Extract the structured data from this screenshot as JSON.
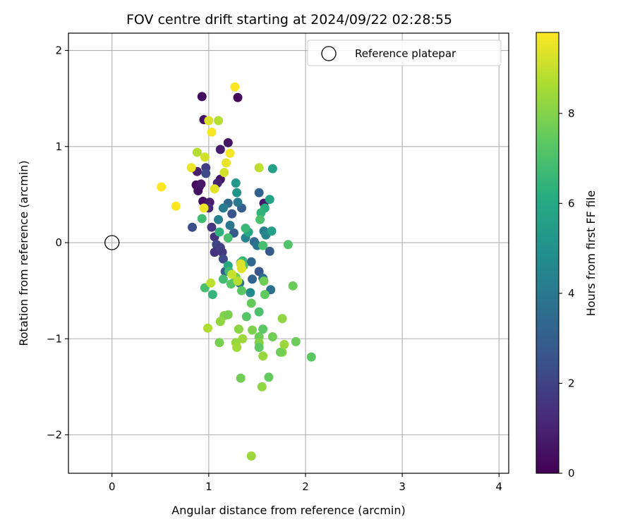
{
  "chart_data": {
    "type": "scatter",
    "title": "FOV centre drift starting at 2024/09/22 02:28:55",
    "xlabel": "Angular distance from reference (arcmin)",
    "ylabel": "Rotation from reference (arcmin)",
    "xlim": [
      -0.45,
      4.1
    ],
    "ylim": [
      -2.4,
      2.18
    ],
    "xticks": [
      0,
      1,
      2,
      3,
      4
    ],
    "xtick_labels": [
      "0",
      "1",
      "2",
      "3",
      "4"
    ],
    "yticks": [
      -2,
      -1,
      0,
      1,
      2
    ],
    "ytick_labels": [
      "−2",
      "−1",
      "0",
      "1",
      "2"
    ],
    "grid": true,
    "legend": {
      "placement": "top-right",
      "entries": [
        {
          "label": "Reference platepar",
          "marker": "open-circle"
        }
      ]
    },
    "colormap": "viridis",
    "colorbar": {
      "label": "Hours from first FF file",
      "range": [
        0,
        9.8
      ],
      "ticks": [
        0,
        2,
        4,
        6,
        8
      ],
      "tick_labels": [
        "0",
        "2",
        "4",
        "6",
        "8"
      ]
    },
    "reference_point": {
      "x": 0,
      "y": 0
    },
    "points": [
      {
        "x": 0.93,
        "y": 1.52,
        "c": 0.3
      },
      {
        "x": 1.3,
        "y": 1.51,
        "c": 0.2
      },
      {
        "x": 0.95,
        "y": 1.28,
        "c": 0.5
      },
      {
        "x": 1.2,
        "y": 1.04,
        "c": 0.6
      },
      {
        "x": 1.12,
        "y": 0.97,
        "c": 0.8
      },
      {
        "x": 0.88,
        "y": 0.74,
        "c": 0.9
      },
      {
        "x": 0.87,
        "y": 0.6,
        "c": 0.3
      },
      {
        "x": 0.9,
        "y": 0.58,
        "c": 0.4
      },
      {
        "x": 0.89,
        "y": 0.54,
        "c": 0.5
      },
      {
        "x": 0.92,
        "y": 0.61,
        "c": 0.6
      },
      {
        "x": 0.94,
        "y": 0.43,
        "c": 0.4
      },
      {
        "x": 1.12,
        "y": 0.66,
        "c": 0.5
      },
      {
        "x": 1.09,
        "y": 0.62,
        "c": 1.0
      },
      {
        "x": 1.57,
        "y": 0.41,
        "c": 0.7
      },
      {
        "x": 1.01,
        "y": 0.42,
        "c": 0.8
      },
      {
        "x": 1.0,
        "y": 0.36,
        "c": 1.2
      },
      {
        "x": 0.97,
        "y": 0.78,
        "c": 1.8
      },
      {
        "x": 0.97,
        "y": 0.72,
        "c": 2.2
      },
      {
        "x": 0.83,
        "y": 0.16,
        "c": 2.4
      },
      {
        "x": 1.03,
        "y": 0.16,
        "c": 1.6
      },
      {
        "x": 1.06,
        "y": 0.06,
        "c": 1.5
      },
      {
        "x": 1.08,
        "y": -0.02,
        "c": 2.1
      },
      {
        "x": 1.06,
        "y": -0.1,
        "c": 1.5
      },
      {
        "x": 1.12,
        "y": -0.05,
        "c": 1.9
      },
      {
        "x": 1.14,
        "y": -0.1,
        "c": 1.7
      },
      {
        "x": 1.15,
        "y": -0.17,
        "c": 2.3
      },
      {
        "x": 1.24,
        "y": 0.3,
        "c": 2.6
      },
      {
        "x": 1.26,
        "y": 0.1,
        "c": 2.8
      },
      {
        "x": 1.28,
        "y": -0.38,
        "c": 2.4
      },
      {
        "x": 1.17,
        "y": -0.3,
        "c": 3.0
      },
      {
        "x": 1.34,
        "y": 0.36,
        "c": 3.0
      },
      {
        "x": 1.44,
        "y": -0.2,
        "c": 3.3
      },
      {
        "x": 1.45,
        "y": -0.38,
        "c": 3.2
      },
      {
        "x": 1.52,
        "y": -0.3,
        "c": 2.7
      },
      {
        "x": 1.52,
        "y": 0.52,
        "c": 3.1
      },
      {
        "x": 1.47,
        "y": 0.01,
        "c": 3.5
      },
      {
        "x": 1.5,
        "y": -0.03,
        "c": 3.9
      },
      {
        "x": 1.56,
        "y": -0.37,
        "c": 3.6
      },
      {
        "x": 1.63,
        "y": -0.09,
        "c": 2.8
      },
      {
        "x": 1.64,
        "y": -0.49,
        "c": 3.7
      },
      {
        "x": 1.2,
        "y": 0.41,
        "c": 3.5
      },
      {
        "x": 1.15,
        "y": 0.36,
        "c": 4.1
      },
      {
        "x": 1.1,
        "y": 0.24,
        "c": 4.3
      },
      {
        "x": 1.22,
        "y": 0.18,
        "c": 3.9
      },
      {
        "x": 1.3,
        "y": 0.42,
        "c": 4.0
      },
      {
        "x": 1.32,
        "y": -0.42,
        "c": 3.9
      },
      {
        "x": 1.43,
        "y": -0.52,
        "c": 4.6
      },
      {
        "x": 1.38,
        "y": 0.05,
        "c": 4.4
      },
      {
        "x": 1.57,
        "y": 0.12,
        "c": 4.2
      },
      {
        "x": 1.59,
        "y": 0.08,
        "c": 4.5
      },
      {
        "x": 1.33,
        "y": -0.21,
        "c": 4.5
      },
      {
        "x": 1.28,
        "y": 0.62,
        "c": 5.2
      },
      {
        "x": 1.29,
        "y": 0.52,
        "c": 5.1
      },
      {
        "x": 1.66,
        "y": 0.77,
        "c": 5.7
      },
      {
        "x": 1.63,
        "y": 0.45,
        "c": 5.8
      },
      {
        "x": 1.58,
        "y": 0.36,
        "c": 6.2
      },
      {
        "x": 1.54,
        "y": 0.31,
        "c": 6.4
      },
      {
        "x": 1.65,
        "y": 0.12,
        "c": 5.6
      },
      {
        "x": 1.41,
        "y": 0.11,
        "c": 5.9
      },
      {
        "x": 1.38,
        "y": 0.15,
        "c": 6.6
      },
      {
        "x": 1.2,
        "y": 0.05,
        "c": 6.9
      },
      {
        "x": 1.11,
        "y": 0.11,
        "c": 6.3
      },
      {
        "x": 1.2,
        "y": -0.24,
        "c": 6.0
      },
      {
        "x": 1.21,
        "y": -0.3,
        "c": 6.7
      },
      {
        "x": 1.35,
        "y": -0.19,
        "c": 6.5
      },
      {
        "x": 1.36,
        "y": -0.24,
        "c": 7.0
      },
      {
        "x": 1.15,
        "y": -0.38,
        "c": 6.8
      },
      {
        "x": 0.96,
        "y": -0.47,
        "c": 6.9
      },
      {
        "x": 1.04,
        "y": -0.54,
        "c": 6.5
      },
      {
        "x": 1.56,
        "y": -0.03,
        "c": 6.9
      },
      {
        "x": 1.53,
        "y": 0.24,
        "c": 7.0
      },
      {
        "x": 0.93,
        "y": 0.25,
        "c": 6.8
      },
      {
        "x": 1.23,
        "y": -0.43,
        "c": 7.2
      },
      {
        "x": 1.28,
        "y": -0.36,
        "c": 7.6
      },
      {
        "x": 1.34,
        "y": -0.5,
        "c": 7.3
      },
      {
        "x": 1.44,
        "y": -0.63,
        "c": 7.5
      },
      {
        "x": 1.57,
        "y": -0.4,
        "c": 7.7
      },
      {
        "x": 1.58,
        "y": -0.54,
        "c": 7.4
      },
      {
        "x": 1.39,
        "y": -0.77,
        "c": 7.2
      },
      {
        "x": 1.52,
        "y": -0.72,
        "c": 7.0
      },
      {
        "x": 1.82,
        "y": -0.02,
        "c": 7.1
      },
      {
        "x": 1.87,
        "y": -0.45,
        "c": 7.6
      },
      {
        "x": 1.16,
        "y": -0.76,
        "c": 8.0
      },
      {
        "x": 1.2,
        "y": -0.75,
        "c": 7.8
      },
      {
        "x": 1.12,
        "y": -0.82,
        "c": 8.2
      },
      {
        "x": 0.99,
        "y": -0.89,
        "c": 8.7
      },
      {
        "x": 1.11,
        "y": -1.04,
        "c": 7.8
      },
      {
        "x": 1.28,
        "y": -1.04,
        "c": 8.3
      },
      {
        "x": 1.29,
        "y": -1.09,
        "c": 8.5
      },
      {
        "x": 1.31,
        "y": -0.9,
        "c": 8.1
      },
      {
        "x": 1.35,
        "y": -1.0,
        "c": 8.4
      },
      {
        "x": 1.45,
        "y": -0.91,
        "c": 7.9
      },
      {
        "x": 1.52,
        "y": -0.98,
        "c": 7.6
      },
      {
        "x": 1.52,
        "y": -1.04,
        "c": 8.0
      },
      {
        "x": 1.52,
        "y": -1.09,
        "c": 7.4
      },
      {
        "x": 1.56,
        "y": -0.9,
        "c": 7.3
      },
      {
        "x": 1.56,
        "y": -1.18,
        "c": 8.3
      },
      {
        "x": 1.66,
        "y": -0.98,
        "c": 7.7
      },
      {
        "x": 1.76,
        "y": -0.79,
        "c": 8.2
      },
      {
        "x": 1.76,
        "y": -1.14,
        "c": 8.1
      },
      {
        "x": 1.74,
        "y": -1.14,
        "c": 7.7
      },
      {
        "x": 1.78,
        "y": -1.06,
        "c": 8.4
      },
      {
        "x": 1.9,
        "y": -1.03,
        "c": 7.6
      },
      {
        "x": 2.06,
        "y": -1.19,
        "c": 7.3
      },
      {
        "x": 1.33,
        "y": -1.41,
        "c": 7.7
      },
      {
        "x": 1.62,
        "y": -1.4,
        "c": 7.5
      },
      {
        "x": 1.55,
        "y": -1.5,
        "c": 8.2
      },
      {
        "x": 1.44,
        "y": -2.22,
        "c": 8.4
      },
      {
        "x": 1.02,
        "y": -0.42,
        "c": 8.9
      },
      {
        "x": 1.3,
        "y": -0.4,
        "c": 8.8
      },
      {
        "x": 1.34,
        "y": -0.27,
        "c": 9.4
      },
      {
        "x": 1.24,
        "y": -0.33,
        "c": 9.0
      },
      {
        "x": 0.88,
        "y": 0.94,
        "c": 8.8
      },
      {
        "x": 0.96,
        "y": 0.89,
        "c": 9.2
      },
      {
        "x": 1.0,
        "y": 1.27,
        "c": 9.3
      },
      {
        "x": 1.1,
        "y": 1.27,
        "c": 8.8
      },
      {
        "x": 1.27,
        "y": 1.62,
        "c": 9.8
      },
      {
        "x": 1.03,
        "y": 1.15,
        "c": 9.7
      },
      {
        "x": 1.22,
        "y": 0.93,
        "c": 9.7
      },
      {
        "x": 1.18,
        "y": 0.83,
        "c": 9.5
      },
      {
        "x": 1.16,
        "y": 0.73,
        "c": 9.2
      },
      {
        "x": 0.82,
        "y": 0.78,
        "c": 9.6
      },
      {
        "x": 0.51,
        "y": 0.58,
        "c": 9.8
      },
      {
        "x": 0.66,
        "y": 0.38,
        "c": 9.8
      },
      {
        "x": 0.95,
        "y": 0.36,
        "c": 9.6
      },
      {
        "x": 1.06,
        "y": 0.56,
        "c": 9.4
      },
      {
        "x": 1.52,
        "y": 0.78,
        "c": 8.9
      },
      {
        "x": 1.33,
        "y": -0.22,
        "c": 9.3
      }
    ]
  }
}
